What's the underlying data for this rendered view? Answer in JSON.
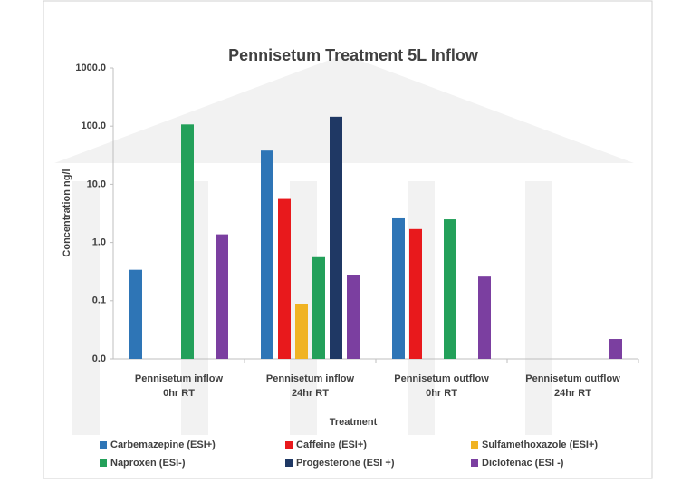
{
  "chart_data": {
    "type": "bar",
    "title": "Pennisetum Treatment 5L Inflow",
    "x_label": "Treatment",
    "y_label": "Concentration ng/l",
    "log_scale": true,
    "categories": [
      [
        "Pennisetum inflow",
        "0hr RT"
      ],
      [
        "Pennisetum inflow",
        "24hr RT"
      ],
      [
        "Pennisetum outflow",
        "0hr RT"
      ],
      [
        "Pennisetum outflow",
        "24hr RT"
      ]
    ],
    "series": [
      {
        "name": "Carbemazepine (ESI+)",
        "color": "#2e75b6",
        "values": [
          0.34,
          38,
          2.6,
          null
        ]
      },
      {
        "name": "Caffeine (ESI+)",
        "color": "#e8191c",
        "values": [
          null,
          5.6,
          1.7,
          null
        ]
      },
      {
        "name": "Sulfamethoxazole (ESI+)",
        "color": "#f0b323",
        "values": [
          null,
          0.087,
          null,
          null
        ]
      },
      {
        "name": "Naproxen (ESI-)",
        "color": "#23a05a",
        "values": [
          107,
          0.56,
          2.5,
          null
        ]
      },
      {
        "name": "Progesterone (ESI +)",
        "color": "#1f3864",
        "values": [
          null,
          145,
          null,
          null
        ]
      },
      {
        "name": "Diclofenac (ESI -)",
        "color": "#7b3fa0",
        "values": [
          1.38,
          0.28,
          0.26,
          0.022
        ]
      }
    ],
    "ylim": [
      0.01,
      1000
    ],
    "yticks": [
      {
        "value": 0.01,
        "label": "0.0"
      },
      0.1,
      {
        "value": 1,
        "label": "1.0"
      },
      {
        "value": 10,
        "label": "10.0"
      },
      {
        "value": 100,
        "label": "100.0"
      },
      {
        "value": 1000,
        "label": "1000.0"
      }
    ],
    "grid": false,
    "legend": "bottom"
  }
}
